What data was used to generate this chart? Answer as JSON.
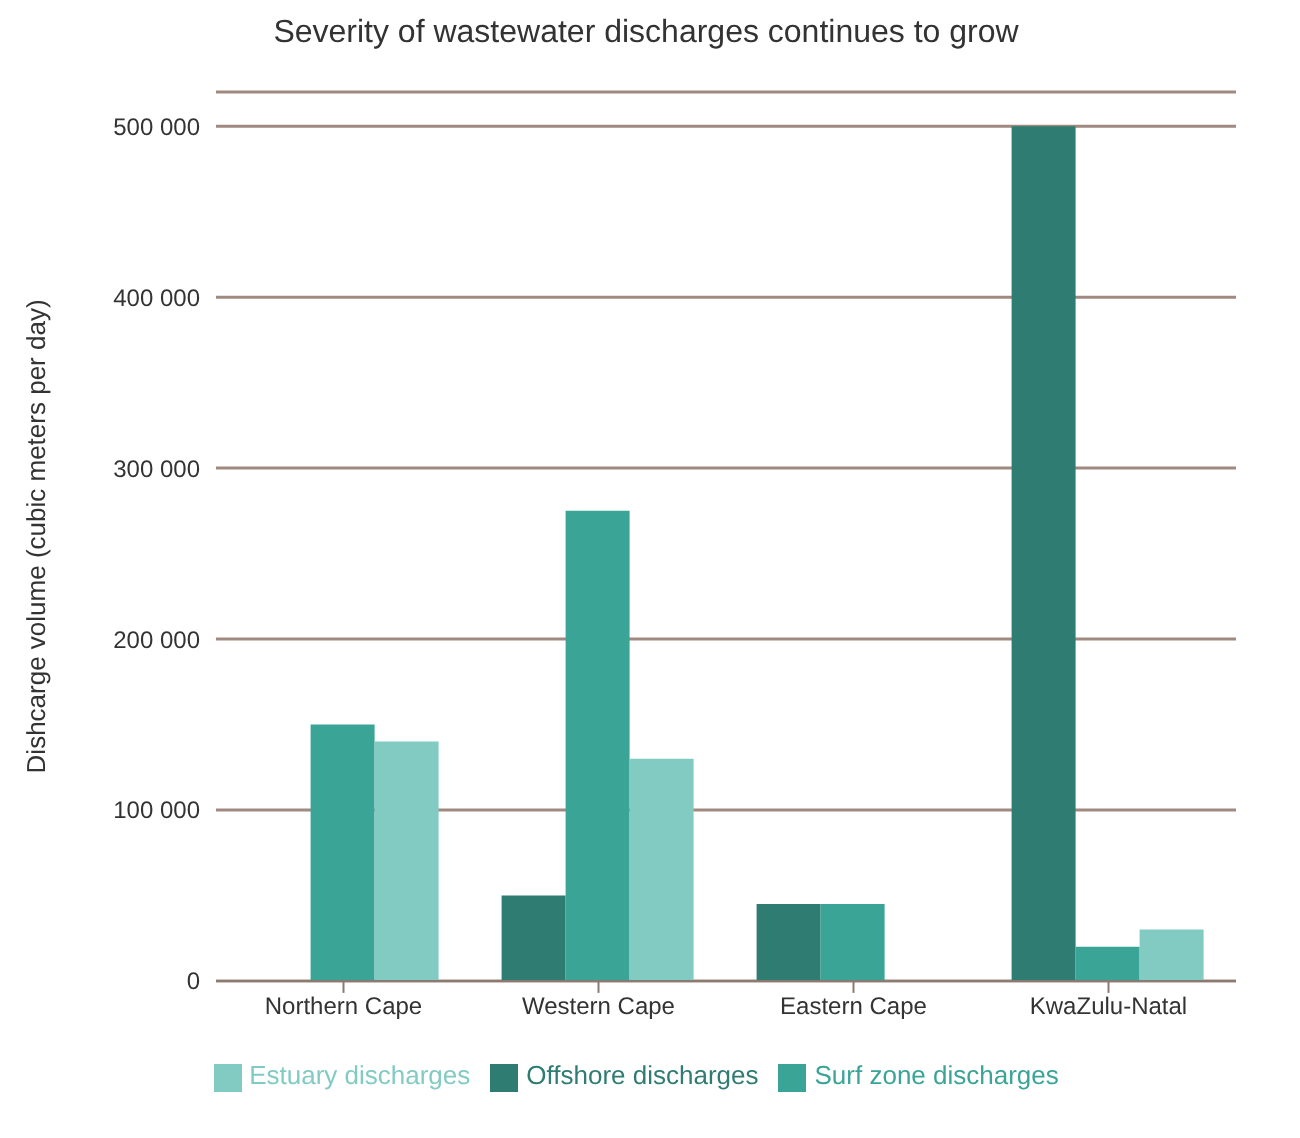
{
  "chart_data": {
    "type": "bar",
    "title": "Severity of wastewater discharges continues to grow",
    "ylabel": "Dishcarge volume (cubic meters per day)",
    "categories": [
      "Northern Cape",
      "Western Cape",
      "Eastern Cape",
      "KwaZulu-Natal"
    ],
    "series": [
      {
        "name": "Offshore discharges",
        "color": "#2f7c72",
        "values": [
          null,
          50000,
          45000,
          500000
        ]
      },
      {
        "name": "Surf zone discharges",
        "color": "#3aa597",
        "values": [
          150000,
          275000,
          45000,
          20000
        ]
      },
      {
        "name": "Estuary discharges",
        "color": "#82cbc3",
        "values": [
          140000,
          130000,
          null,
          30000
        ]
      }
    ],
    "ylim": [
      0,
      520000
    ],
    "yticks": [
      0,
      {
        "value": 100000,
        "label": "100 000"
      },
      {
        "value": 200000,
        "label": "200 000"
      },
      {
        "value": 300000,
        "label": "300 000"
      },
      {
        "value": 400000,
        "label": "400 000"
      },
      {
        "value": 500000,
        "label": "500 000"
      }
    ],
    "grid": "y",
    "legend": "bottom"
  }
}
